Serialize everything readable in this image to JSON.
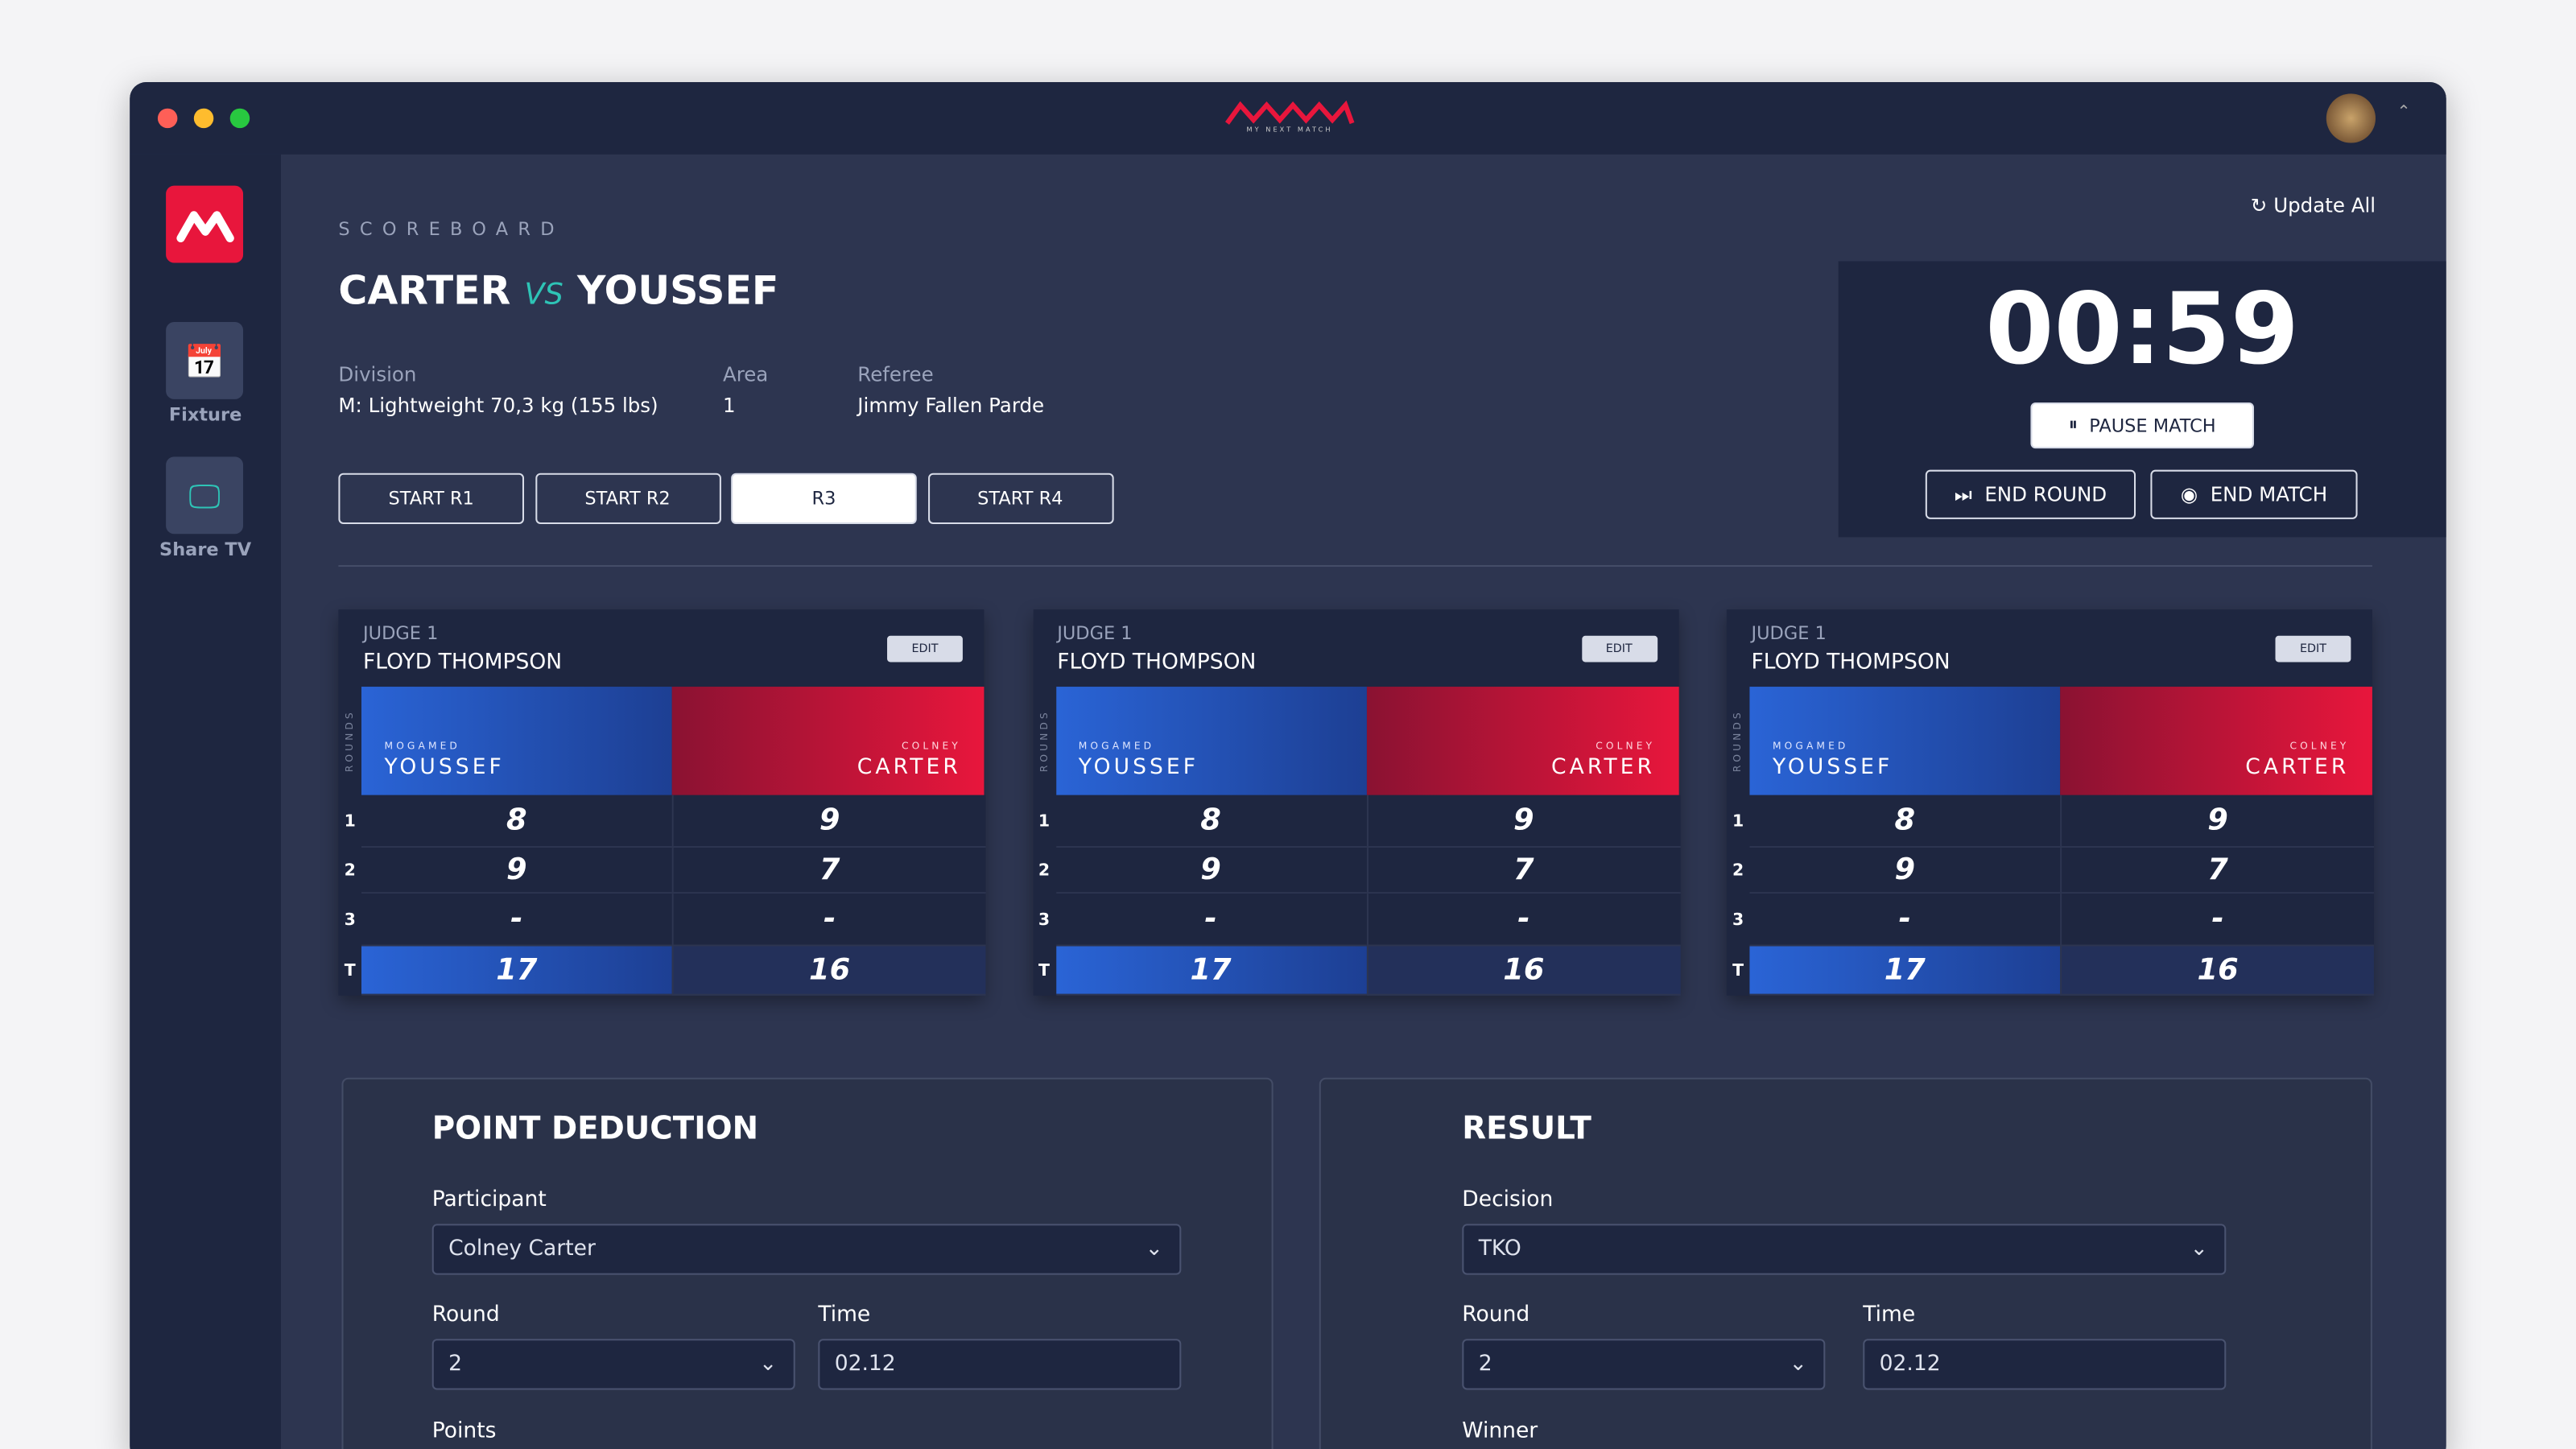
{
  "app": {
    "logo_text": "MY NEXT MATCH"
  },
  "sidebar": [
    {
      "label": "Fixture"
    },
    {
      "label": "Share TV"
    }
  ],
  "header": {
    "section": "SCOREBOARD",
    "fighter_a": "CARTER",
    "vs": "VS",
    "fighter_b": "YOUSSEF",
    "update": "Update All"
  },
  "info": [
    {
      "label": "Division",
      "value": "M: Lightweight 70,3 kg (155 lbs)"
    },
    {
      "label": "Area",
      "value": "1"
    },
    {
      "label": "Referee",
      "value": "Jimmy Fallen Parde"
    }
  ],
  "rounds": [
    "START R1",
    "START R2",
    "R3",
    "START R4"
  ],
  "timer": {
    "time": "00:59",
    "pause": "PAUSE MATCH",
    "end_round": "END ROUND",
    "end_match": "END MATCH"
  },
  "judges": [
    {
      "title": "JUDGE 1",
      "name": "FLOYD THOMPSON",
      "edit": "EDIT",
      "rounds_label": "ROUNDS",
      "blue": {
        "first": "MOGAMED",
        "last": "YOUSSEF"
      },
      "red": {
        "first": "COLNEY",
        "last": "CARTER"
      },
      "rows": [
        {
          "round": "1",
          "blue": "8",
          "red": "9"
        },
        {
          "round": "2",
          "blue": "9",
          "red": "7"
        },
        {
          "round": "3",
          "blue": "-",
          "red": "-"
        },
        {
          "round": "T",
          "blue": "17",
          "red": "16"
        }
      ]
    },
    {
      "title": "JUDGE 1",
      "name": "FLOYD THOMPSON",
      "edit": "EDIT",
      "rounds_label": "ROUNDS",
      "blue": {
        "first": "MOGAMED",
        "last": "YOUSSEF"
      },
      "red": {
        "first": "COLNEY",
        "last": "CARTER"
      },
      "rows": [
        {
          "round": "1",
          "blue": "8",
          "red": "9"
        },
        {
          "round": "2",
          "blue": "9",
          "red": "7"
        },
        {
          "round": "3",
          "blue": "-",
          "red": "-"
        },
        {
          "round": "T",
          "blue": "17",
          "red": "16"
        }
      ]
    },
    {
      "title": "JUDGE 1",
      "name": "FLOYD THOMPSON",
      "edit": "EDIT",
      "rounds_label": "ROUNDS",
      "blue": {
        "first": "MOGAMED",
        "last": "YOUSSEF"
      },
      "red": {
        "first": "COLNEY",
        "last": "CARTER"
      },
      "rows": [
        {
          "round": "1",
          "blue": "8",
          "red": "9"
        },
        {
          "round": "2",
          "blue": "9",
          "red": "7"
        },
        {
          "round": "3",
          "blue": "-",
          "red": "-"
        },
        {
          "round": "T",
          "blue": "17",
          "red": "16"
        }
      ]
    }
  ],
  "point_deduction": {
    "title": "POINT DEDUCTION",
    "participant_label": "Participant",
    "participant": "Colney Carter",
    "round_label": "Round",
    "round": "2",
    "time_label": "Time",
    "time": "02.12",
    "points_label": "Points"
  },
  "result": {
    "title": "RESULT",
    "decision_label": "Decision",
    "decision": "TKO",
    "round_label": "Round",
    "round": "2",
    "time_label": "Time",
    "time": "02.12",
    "winner_label": "Winner"
  }
}
